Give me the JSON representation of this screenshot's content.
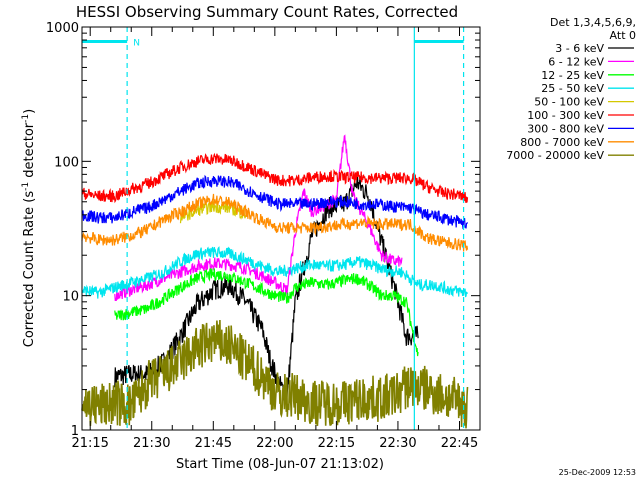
{
  "chart_data": {
    "type": "line",
    "title": "HESSI Observing Summary Count Rates, Corrected",
    "xlabel": "Start Time (08-Jun-07 21:13:02)",
    "ylabel_main": "Corrected Count Rate (s",
    "ylabel_sup1": "-1",
    "ylabel_mid": " detector",
    "ylabel_sup2": "-1",
    "ylabel_end": ")",
    "y_scale": "log",
    "xlim": [
      0,
      97
    ],
    "ylim": [
      1,
      1000
    ],
    "x_ticks": [
      {
        "t": 2,
        "label": "21:15"
      },
      {
        "t": 17,
        "label": "21:30"
      },
      {
        "t": 32,
        "label": "21:45"
      },
      {
        "t": 47,
        "label": "22:00"
      },
      {
        "t": 62,
        "label": "22:15"
      },
      {
        "t": 77,
        "label": "22:30"
      },
      {
        "t": 92,
        "label": "22:45"
      }
    ],
    "y_ticks": [
      {
        "v": 1,
        "label": "1"
      },
      {
        "v": 10,
        "label": "10"
      },
      {
        "v": 100,
        "label": "100"
      },
      {
        "v": 1000,
        "label": "1000"
      }
    ],
    "legend_header": [
      "Det 1,3,4,5,6,9,",
      "Att 0"
    ],
    "legend_position": "right",
    "series": [
      {
        "name": "3 - 6 keV",
        "color": "#000000",
        "points": [
          [
            8,
            2.5
          ],
          [
            12,
            2.6
          ],
          [
            16,
            2.6
          ],
          [
            20,
            3.2
          ],
          [
            24,
            5
          ],
          [
            28,
            8.5
          ],
          [
            32,
            11
          ],
          [
            36,
            12
          ],
          [
            40,
            9
          ],
          [
            44,
            5.5
          ],
          [
            46,
            3.2
          ],
          [
            48,
            2.2
          ],
          [
            50,
            1.8
          ],
          [
            52,
            9
          ],
          [
            56,
            28
          ],
          [
            60,
            45
          ],
          [
            64,
            48
          ],
          [
            67,
            70
          ],
          [
            70,
            55
          ],
          [
            73,
            25
          ],
          [
            76,
            12
          ],
          [
            79,
            5
          ],
          [
            82,
            5
          ]
        ]
      },
      {
        "name": "6 - 12 keV",
        "color": "#ff00ff",
        "points": [
          [
            8,
            10
          ],
          [
            12,
            11
          ],
          [
            16,
            12
          ],
          [
            20,
            13.5
          ],
          [
            24,
            15
          ],
          [
            28,
            16.5
          ],
          [
            32,
            17.5
          ],
          [
            36,
            17
          ],
          [
            40,
            16
          ],
          [
            44,
            14
          ],
          [
            47,
            12.5
          ],
          [
            50,
            11
          ],
          [
            52,
            30
          ],
          [
            54,
            60
          ],
          [
            56,
            42
          ],
          [
            58,
            45
          ],
          [
            62,
            52
          ],
          [
            64,
            160
          ],
          [
            66,
            55
          ],
          [
            70,
            33
          ],
          [
            73,
            20
          ],
          [
            76,
            18
          ],
          [
            78,
            18
          ]
        ]
      },
      {
        "name": "12 - 25 keV",
        "color": "#00ff00",
        "points": [
          [
            8,
            7
          ],
          [
            12,
            7.5
          ],
          [
            16,
            8
          ],
          [
            20,
            9.5
          ],
          [
            24,
            11.5
          ],
          [
            28,
            13.5
          ],
          [
            32,
            14.5
          ],
          [
            36,
            14
          ],
          [
            40,
            12.5
          ],
          [
            44,
            11
          ],
          [
            47,
            10
          ],
          [
            50,
            9.5
          ],
          [
            52,
            11.5
          ],
          [
            56,
            12.5
          ],
          [
            60,
            12
          ],
          [
            64,
            13
          ],
          [
            67,
            13.5
          ],
          [
            70,
            12
          ],
          [
            73,
            10
          ],
          [
            76,
            10
          ],
          [
            79,
            9
          ],
          [
            82,
            3.5
          ]
        ]
      },
      {
        "name": "25 - 50 keV",
        "color": "#00e5ee",
        "points": [
          [
            0,
            11
          ],
          [
            4,
            10.5
          ],
          [
            8,
            11.5
          ],
          [
            12,
            12.5
          ],
          [
            16,
            13.5
          ],
          [
            20,
            15
          ],
          [
            24,
            18
          ],
          [
            28,
            20.5
          ],
          [
            32,
            21
          ],
          [
            36,
            20.5
          ],
          [
            40,
            18.5
          ],
          [
            44,
            16.5
          ],
          [
            48,
            15
          ],
          [
            52,
            16
          ],
          [
            56,
            17
          ],
          [
            60,
            16.5
          ],
          [
            64,
            17
          ],
          [
            67,
            18
          ],
          [
            70,
            17
          ],
          [
            74,
            15.5
          ],
          [
            78,
            15
          ],
          [
            82,
            12
          ],
          [
            86,
            12
          ],
          [
            90,
            11
          ],
          [
            94,
            10.5
          ]
        ]
      },
      {
        "name": "50 - 100 keV",
        "color": "#d4c800",
        "points": [
          [
            24,
            38
          ],
          [
            28,
            43
          ],
          [
            32,
            46
          ],
          [
            36,
            45
          ],
          [
            40,
            40
          ]
        ]
      },
      {
        "name": "100 - 300 keV",
        "color": "#ff0000",
        "points": [
          [
            0,
            58
          ],
          [
            4,
            55
          ],
          [
            8,
            55
          ],
          [
            12,
            62
          ],
          [
            16,
            68
          ],
          [
            20,
            78
          ],
          [
            24,
            90
          ],
          [
            28,
            100
          ],
          [
            32,
            105
          ],
          [
            36,
            102
          ],
          [
            40,
            92
          ],
          [
            44,
            80
          ],
          [
            48,
            72
          ],
          [
            52,
            72
          ],
          [
            56,
            76
          ],
          [
            60,
            78
          ],
          [
            64,
            76
          ],
          [
            68,
            76
          ],
          [
            72,
            75
          ],
          [
            76,
            75
          ],
          [
            80,
            75
          ],
          [
            84,
            65
          ],
          [
            88,
            58
          ],
          [
            92,
            56
          ],
          [
            94,
            52
          ]
        ]
      },
      {
        "name": "300 - 800 keV",
        "color": "#0000ff",
        "points": [
          [
            0,
            40
          ],
          [
            4,
            38
          ],
          [
            8,
            38
          ],
          [
            12,
            42
          ],
          [
            16,
            45
          ],
          [
            20,
            52
          ],
          [
            24,
            60
          ],
          [
            28,
            68
          ],
          [
            32,
            72
          ],
          [
            36,
            70
          ],
          [
            40,
            62
          ],
          [
            44,
            54
          ],
          [
            48,
            48
          ],
          [
            52,
            48
          ],
          [
            56,
            48
          ],
          [
            60,
            50
          ],
          [
            64,
            50
          ],
          [
            68,
            48
          ],
          [
            72,
            48
          ],
          [
            76,
            46
          ],
          [
            80,
            45
          ],
          [
            84,
            40
          ],
          [
            88,
            38
          ],
          [
            92,
            35
          ],
          [
            94,
            34
          ]
        ]
      },
      {
        "name": "800 - 7000 keV",
        "color": "#ff8c00",
        "points": [
          [
            0,
            28
          ],
          [
            4,
            26
          ],
          [
            8,
            26
          ],
          [
            12,
            28
          ],
          [
            16,
            31
          ],
          [
            20,
            37
          ],
          [
            24,
            42
          ],
          [
            28,
            48
          ],
          [
            32,
            52
          ],
          [
            36,
            49
          ],
          [
            40,
            42
          ],
          [
            44,
            36
          ],
          [
            48,
            32
          ],
          [
            52,
            32
          ],
          [
            56,
            32
          ],
          [
            60,
            33
          ],
          [
            64,
            34
          ],
          [
            68,
            35
          ],
          [
            72,
            34
          ],
          [
            76,
            34
          ],
          [
            80,
            34
          ],
          [
            84,
            27
          ],
          [
            88,
            25
          ],
          [
            92,
            24
          ],
          [
            94,
            23
          ]
        ]
      },
      {
        "name": "7000 - 20000 keV",
        "color": "#808000",
        "points": [
          [
            0,
            1.6
          ],
          [
            4,
            1.5
          ],
          [
            8,
            1.6
          ],
          [
            12,
            1.5
          ],
          [
            16,
            2.2
          ],
          [
            20,
            2.6
          ],
          [
            24,
            3.2
          ],
          [
            28,
            4
          ],
          [
            32,
            4.6
          ],
          [
            36,
            4.2
          ],
          [
            40,
            3.2
          ],
          [
            44,
            2.5
          ],
          [
            48,
            1.8
          ],
          [
            52,
            1.8
          ],
          [
            56,
            1.6
          ],
          [
            60,
            1.6
          ],
          [
            64,
            1.6
          ],
          [
            68,
            1.7
          ],
          [
            72,
            1.7
          ],
          [
            76,
            1.8
          ],
          [
            80,
            2.2
          ],
          [
            84,
            2
          ],
          [
            88,
            1.8
          ],
          [
            92,
            1.6
          ],
          [
            94,
            1.5
          ]
        ]
      }
    ],
    "markers": {
      "solid_cyan_lines_t": [
        81
      ],
      "dashed_cyan_lines_t": [
        11,
        93
      ],
      "night_bars": [
        [
          0,
          11
        ],
        [
          81,
          93
        ]
      ],
      "night_bar_value": 780,
      "night_label": "N",
      "night_label_t": 12
    }
  },
  "footer_timestamp": "25-Dec-2009 12:53"
}
